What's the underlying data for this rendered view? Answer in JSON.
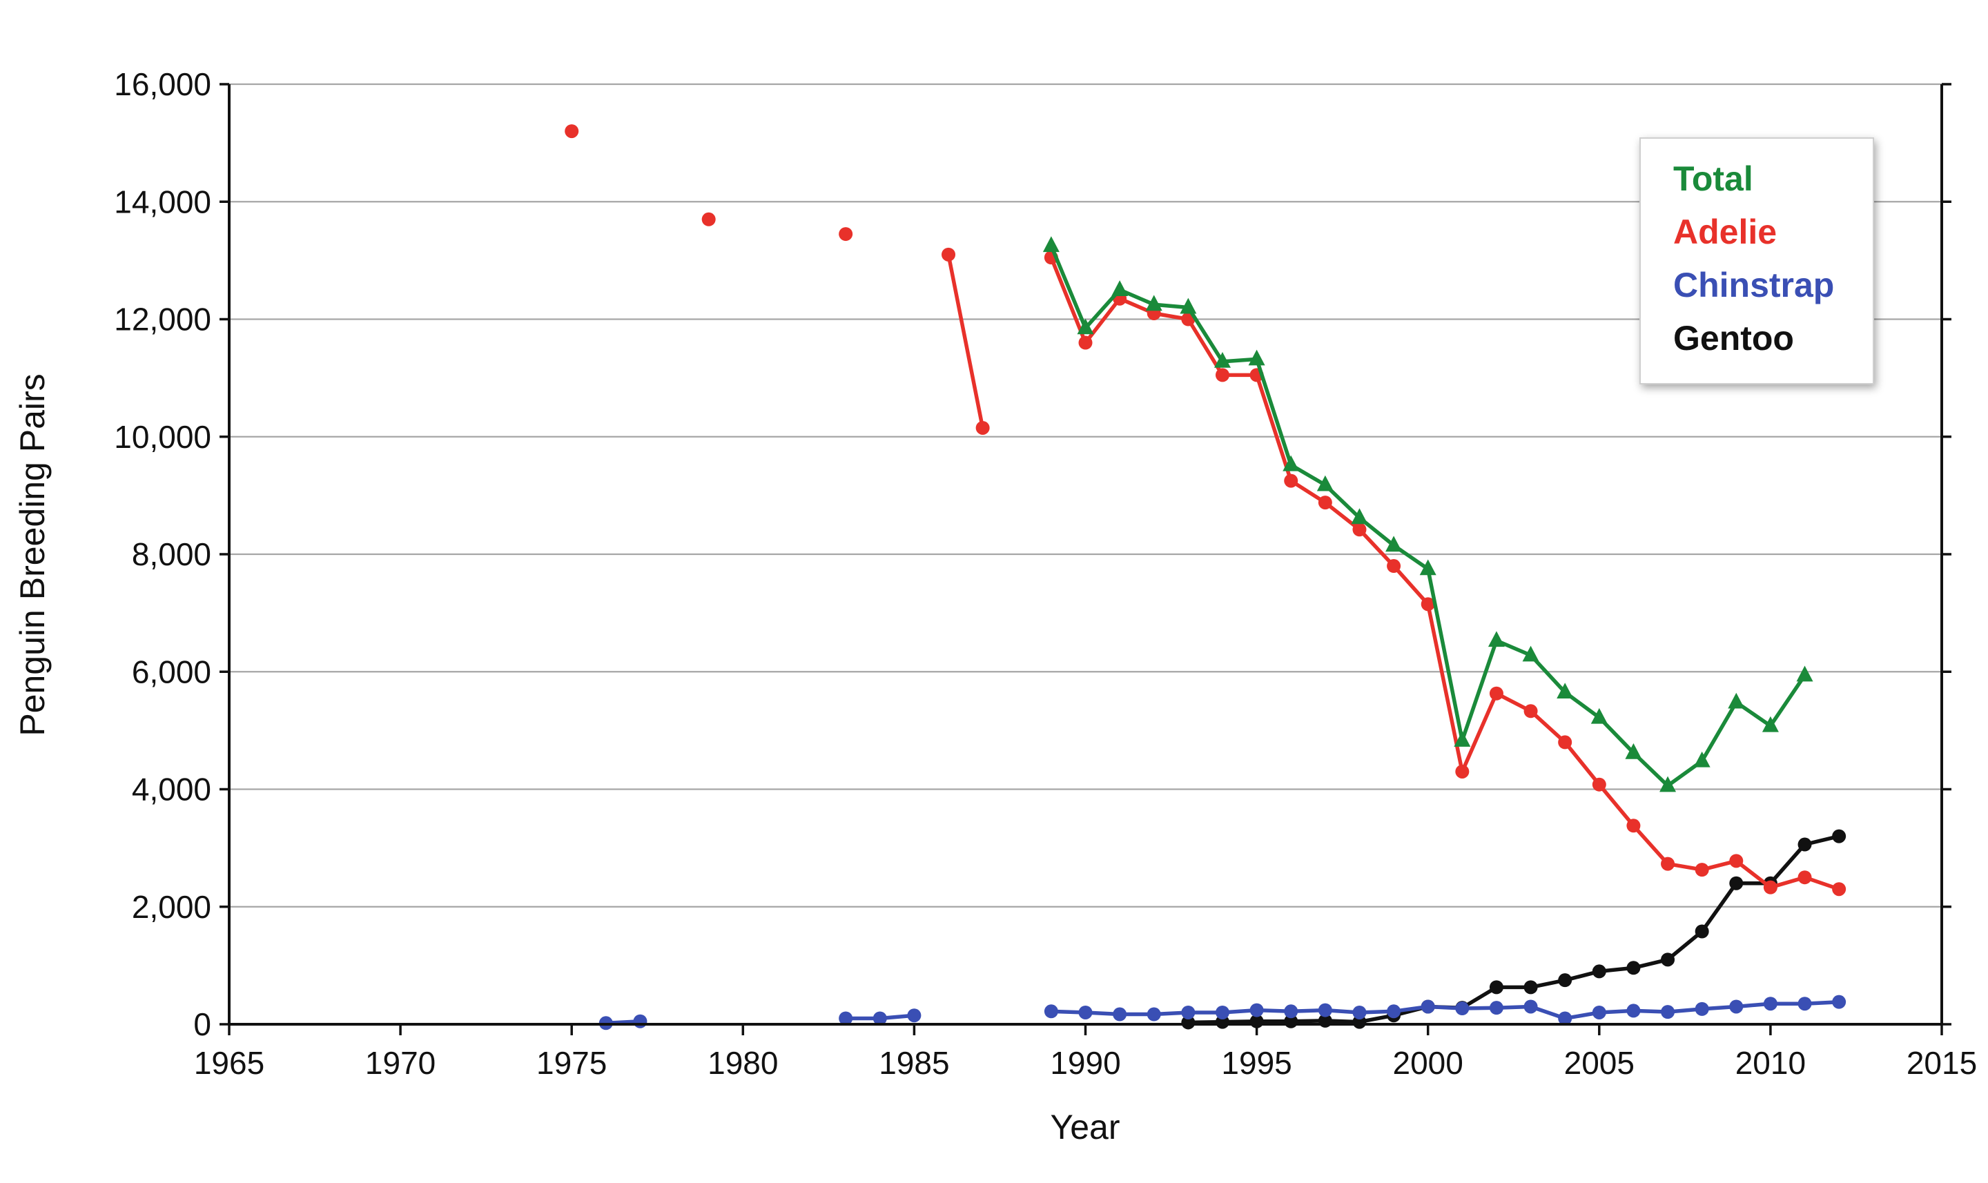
{
  "chart_data": {
    "type": "line",
    "title": "",
    "xlabel": "Year",
    "ylabel": "Penguin Breeding Pairs",
    "xlim": [
      1965,
      2015
    ],
    "ylim": [
      0,
      16000
    ],
    "x_ticks": [
      1965,
      1970,
      1975,
      1980,
      1985,
      1990,
      1995,
      2000,
      2005,
      2010,
      2015
    ],
    "y_ticks": [
      0,
      2000,
      4000,
      6000,
      8000,
      10000,
      12000,
      14000,
      16000
    ],
    "x_tick_labels": [
      "1965",
      "1970",
      "1975",
      "1980",
      "1985",
      "1990",
      "1995",
      "2000",
      "2005",
      "2010",
      "2015"
    ],
    "y_tick_labels": [
      "0",
      "2,000",
      "4,000",
      "6,000",
      "8,000",
      "10,000",
      "12,000",
      "14,000",
      "16,000"
    ],
    "grid": "horizontal",
    "legend_position": "top-right",
    "series": [
      {
        "name": "Total",
        "color": "#1a8a3a",
        "marker": "triangle",
        "segments": [
          [
            [
              1989,
              13250
            ],
            [
              1990,
              11850
            ],
            [
              1991,
              12500
            ],
            [
              1992,
              12250
            ],
            [
              1993,
              12200
            ],
            [
              1994,
              11280
            ],
            [
              1995,
              11320
            ],
            [
              1996,
              9520
            ],
            [
              1997,
              9180
            ],
            [
              1998,
              8620
            ],
            [
              1999,
              8150
            ],
            [
              2000,
              7750
            ],
            [
              2001,
              4830
            ],
            [
              2002,
              6530
            ],
            [
              2003,
              6280
            ],
            [
              2004,
              5650
            ],
            [
              2005,
              5220
            ],
            [
              2006,
              4620
            ],
            [
              2007,
              4060
            ],
            [
              2008,
              4480
            ],
            [
              2009,
              5480
            ],
            [
              2010,
              5080
            ],
            [
              2011,
              5940
            ]
          ]
        ]
      },
      {
        "name": "Adelie",
        "color": "#e8312a",
        "marker": "circle",
        "segments": [
          [
            [
              1975,
              15200
            ]
          ],
          [
            [
              1979,
              13700
            ]
          ],
          [
            [
              1983,
              13450
            ]
          ],
          [
            [
              1986,
              13100
            ],
            [
              1987,
              10150
            ]
          ],
          [
            [
              1989,
              13050
            ],
            [
              1990,
              11600
            ],
            [
              1991,
              12350
            ],
            [
              1992,
              12100
            ],
            [
              1993,
              12000
            ],
            [
              1994,
              11050
            ],
            [
              1995,
              11050
            ],
            [
              1996,
              9250
            ],
            [
              1997,
              8880
            ],
            [
              1998,
              8420
            ],
            [
              1999,
              7800
            ],
            [
              2000,
              7150
            ],
            [
              2001,
              4300
            ],
            [
              2002,
              5630
            ],
            [
              2003,
              5330
            ],
            [
              2004,
              4800
            ],
            [
              2005,
              4080
            ],
            [
              2006,
              3380
            ],
            [
              2007,
              2730
            ],
            [
              2008,
              2630
            ],
            [
              2009,
              2780
            ],
            [
              2010,
              2330
            ],
            [
              2011,
              2500
            ],
            [
              2012,
              2300
            ]
          ]
        ]
      },
      {
        "name": "Chinstrap",
        "color": "#3a4fb4",
        "marker": "circle",
        "segments": [
          [
            [
              1976,
              20
            ],
            [
              1977,
              50
            ]
          ],
          [
            [
              1983,
              100
            ],
            [
              1984,
              100
            ],
            [
              1985,
              150
            ]
          ],
          [
            [
              1989,
              220
            ],
            [
              1990,
              200
            ],
            [
              1991,
              170
            ],
            [
              1992,
              170
            ],
            [
              1993,
              200
            ],
            [
              1994,
              200
            ],
            [
              1995,
              240
            ],
            [
              1996,
              220
            ],
            [
              1997,
              240
            ],
            [
              1998,
              200
            ],
            [
              1999,
              220
            ],
            [
              2000,
              300
            ],
            [
              2001,
              270
            ],
            [
              2002,
              280
            ],
            [
              2003,
              300
            ],
            [
              2004,
              100
            ],
            [
              2005,
              200
            ],
            [
              2006,
              230
            ],
            [
              2007,
              210
            ],
            [
              2008,
              260
            ],
            [
              2009,
              300
            ],
            [
              2010,
              350
            ],
            [
              2011,
              350
            ],
            [
              2012,
              380
            ]
          ]
        ]
      },
      {
        "name": "Gentoo",
        "color": "#111111",
        "marker": "circle",
        "segments": [
          [
            [
              1993,
              30
            ],
            [
              1994,
              40
            ],
            [
              1995,
              50
            ],
            [
              1996,
              50
            ],
            [
              1997,
              60
            ],
            [
              1998,
              40
            ],
            [
              1999,
              150
            ],
            [
              2000,
              300
            ],
            [
              2001,
              280
            ],
            [
              2002,
              630
            ],
            [
              2003,
              630
            ],
            [
              2004,
              750
            ],
            [
              2005,
              900
            ],
            [
              2006,
              960
            ],
            [
              2007,
              1100
            ],
            [
              2008,
              1580
            ],
            [
              2009,
              2400
            ],
            [
              2010,
              2400
            ],
            [
              2011,
              3060
            ],
            [
              2012,
              3200
            ]
          ]
        ]
      }
    ]
  }
}
